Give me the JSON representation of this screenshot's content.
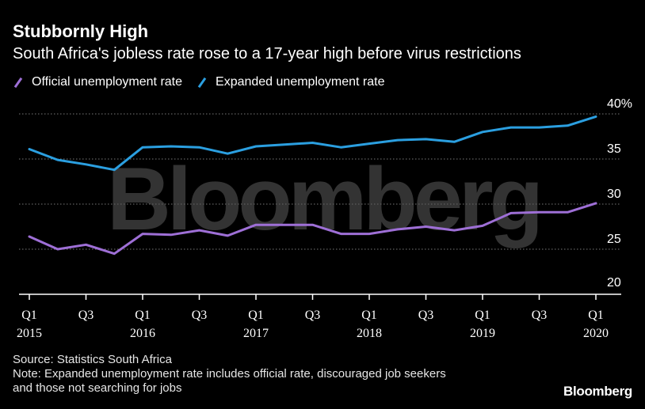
{
  "header": {
    "title": "Stubbornly High",
    "subtitle": "South Africa's jobless rate rose to a 17-year high before virus restrictions"
  },
  "watermark": "Bloomberg",
  "brand": "Bloomberg",
  "footer": {
    "source": "Source: Statistics South Africa",
    "note_line1": "Note: Expanded unemployment rate includes official rate, discouraged job seekers",
    "note_line2": "and those not searching for jobs"
  },
  "colors": {
    "official": "#9e6fd6",
    "expanded": "#2b9fe0",
    "grid": "#777777",
    "background": "#000000"
  },
  "chart_data": {
    "type": "line",
    "title": "Stubbornly High",
    "subtitle": "South Africa's jobless rate rose to a 17-year high before virus restrictions",
    "x": [
      "Q1 2015",
      "Q2 2015",
      "Q3 2015",
      "Q4 2015",
      "Q1 2016",
      "Q2 2016",
      "Q3 2016",
      "Q4 2016",
      "Q1 2017",
      "Q2 2017",
      "Q3 2017",
      "Q4 2017",
      "Q1 2018",
      "Q2 2018",
      "Q3 2018",
      "Q4 2018",
      "Q1 2019",
      "Q2 2019",
      "Q3 2019",
      "Q4 2019",
      "Q1 2020"
    ],
    "series": [
      {
        "name": "Official unemployment rate",
        "color_key": "official",
        "values": [
          26.4,
          25.0,
          25.5,
          24.5,
          26.7,
          26.6,
          27.1,
          26.5,
          27.7,
          27.7,
          27.7,
          26.7,
          26.7,
          27.2,
          27.5,
          27.1,
          27.6,
          29.0,
          29.1,
          29.1,
          30.1
        ]
      },
      {
        "name": "Expanded unemployment rate",
        "color_key": "expanded",
        "values": [
          36.1,
          34.9,
          34.4,
          33.8,
          36.3,
          36.4,
          36.3,
          35.6,
          36.4,
          36.6,
          36.8,
          36.3,
          36.7,
          37.1,
          37.2,
          36.9,
          38.0,
          38.5,
          38.5,
          38.7,
          39.7
        ]
      }
    ],
    "x_tick_labels": [
      {
        "index": 0,
        "line1": "Q1",
        "line2": "2015"
      },
      {
        "index": 2,
        "line1": "Q3",
        "line2": ""
      },
      {
        "index": 4,
        "line1": "Q1",
        "line2": "2016"
      },
      {
        "index": 6,
        "line1": "Q3",
        "line2": ""
      },
      {
        "index": 8,
        "line1": "Q1",
        "line2": "2017"
      },
      {
        "index": 10,
        "line1": "Q3",
        "line2": ""
      },
      {
        "index": 12,
        "line1": "Q1",
        "line2": "2018"
      },
      {
        "index": 14,
        "line1": "Q3",
        "line2": ""
      },
      {
        "index": 16,
        "line1": "Q1",
        "line2": "2019"
      },
      {
        "index": 18,
        "line1": "Q3",
        "line2": ""
      },
      {
        "index": 20,
        "line1": "Q1",
        "line2": "2020"
      }
    ],
    "y_ticks": [
      {
        "value": 40,
        "label": "40%"
      },
      {
        "value": 35,
        "label": "35"
      },
      {
        "value": 30,
        "label": "30"
      },
      {
        "value": 25,
        "label": "25"
      },
      {
        "value": 20,
        "label": "20"
      }
    ],
    "ylim": [
      20,
      40
    ],
    "xlabel": "",
    "ylabel": "",
    "grid": true,
    "legend_position": "top-left"
  }
}
